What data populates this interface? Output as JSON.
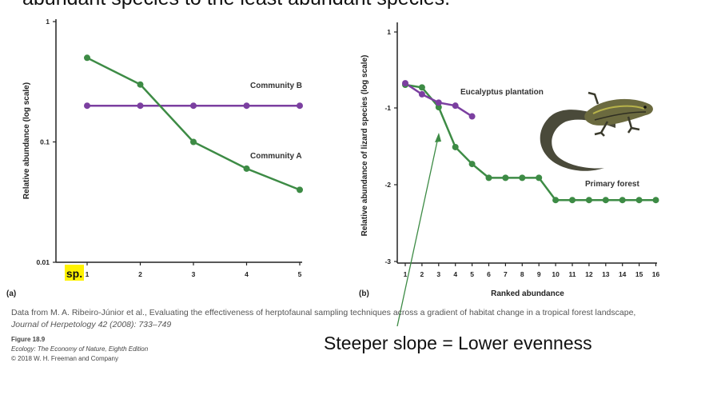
{
  "top_caption": "abundant species to the least abundant species.",
  "charts": {
    "a": {
      "panel_label": "(a)",
      "ylabel": "Relative abundance (log scale)",
      "y_ticks": [
        {
          "value": 0.01,
          "label": "0.01"
        },
        {
          "value": 0.1,
          "label": "0.1"
        },
        {
          "value": 1,
          "label": "1"
        }
      ],
      "x_ticks": [
        {
          "value": 2,
          "label": "2"
        },
        {
          "value": 3,
          "label": "3"
        },
        {
          "value": 4,
          "label": "4"
        },
        {
          "value": 5,
          "label": "5"
        }
      ],
      "first_tick_highlight": "sp.",
      "first_tick_label": "1"
    },
    "b": {
      "panel_label": "(b)",
      "ylabel": "Relative abundance of lizard species (log scale)",
      "xlabel": "Ranked abundance",
      "y_ticks": [
        {
          "value": 1,
          "label": "1"
        },
        {
          "value": -1,
          "label": "-1"
        },
        {
          "value": -2,
          "label": "-2"
        },
        {
          "value": -3,
          "label": "-3"
        }
      ],
      "x_ticks": [
        {
          "value": 1,
          "label": "1"
        },
        {
          "value": 2,
          "label": "2"
        },
        {
          "value": 3,
          "label": "3"
        },
        {
          "value": 4,
          "label": "4"
        },
        {
          "value": 5,
          "label": "5"
        },
        {
          "value": 6,
          "label": "6"
        },
        {
          "value": 7,
          "label": "7"
        },
        {
          "value": 8,
          "label": "8"
        },
        {
          "value": 9,
          "label": "9"
        },
        {
          "value": 10,
          "label": "10"
        },
        {
          "value": 11,
          "label": "11"
        },
        {
          "value": 12,
          "label": "12"
        },
        {
          "value": 13,
          "label": "13"
        },
        {
          "value": 14,
          "label": "14"
        },
        {
          "value": 15,
          "label": "15"
        },
        {
          "value": 16,
          "label": "16"
        }
      ]
    }
  },
  "chart_data": [
    {
      "type": "line",
      "xlabel": "",
      "ylabel": "Relative abundance (log scale)",
      "y_scale": "log",
      "ylim": [
        0.01,
        1
      ],
      "xlim": [
        1,
        5
      ],
      "grid": false,
      "series": [
        {
          "name": "Community B",
          "color": "#7b3fa0",
          "x": [
            1,
            2,
            3,
            4,
            5
          ],
          "y": [
            0.2,
            0.2,
            0.2,
            0.2,
            0.2
          ]
        },
        {
          "name": "Community A",
          "color": "#3d8b45",
          "x": [
            1,
            2,
            3,
            4,
            5
          ],
          "y": [
            0.5,
            0.3,
            0.1,
            0.06,
            0.04
          ]
        }
      ]
    },
    {
      "type": "line",
      "xlabel": "Ranked abundance",
      "ylabel": "Relative abundance of lizard species (log scale)",
      "y_scale": "log",
      "ylim": [
        -3,
        1
      ],
      "xlim": [
        1,
        16
      ],
      "grid": false,
      "series": [
        {
          "name": "Eucalyptus plantation",
          "color": "#7b3fa0",
          "x": [
            1,
            2,
            3,
            4,
            5
          ],
          "y": [
            -0.35,
            -0.64,
            -0.86,
            -0.94,
            -1.11
          ]
        },
        {
          "name": "Primary forest",
          "color": "#3d8b45",
          "x": [
            1,
            2,
            3,
            4,
            5,
            6,
            7,
            8,
            9,
            10,
            11,
            12,
            13,
            14,
            15,
            16
          ],
          "y": [
            -0.39,
            -0.46,
            -0.98,
            -1.51,
            -1.73,
            -1.91,
            -1.91,
            -1.91,
            -1.91,
            -2.2,
            -2.2,
            -2.2,
            -2.2,
            -2.2,
            -2.2,
            -2.2
          ]
        }
      ]
    }
  ],
  "credits": {
    "line1": "Data from M. A. Ribeiro-Júnior et al., Evaluating the effectiveness of herptofaunal sampling techniques across a gradient of habitat change in a tropical forest landscape,",
    "line2": "Journal of Herpetology 42 (2008): 733–749",
    "figure": "Figure 18.9",
    "book": "Ecology: The Economy of Nature, Eighth Edition",
    "copyright": "© 2018 W. H. Freeman and Company"
  },
  "annotation": "Steeper slope = Lower evenness",
  "colors": {
    "purple": "#7b3fa0",
    "green": "#3d8b45",
    "highlight": "#fff200",
    "axis": "#222222"
  },
  "icons": {
    "lizard": "lizard-illustration"
  }
}
